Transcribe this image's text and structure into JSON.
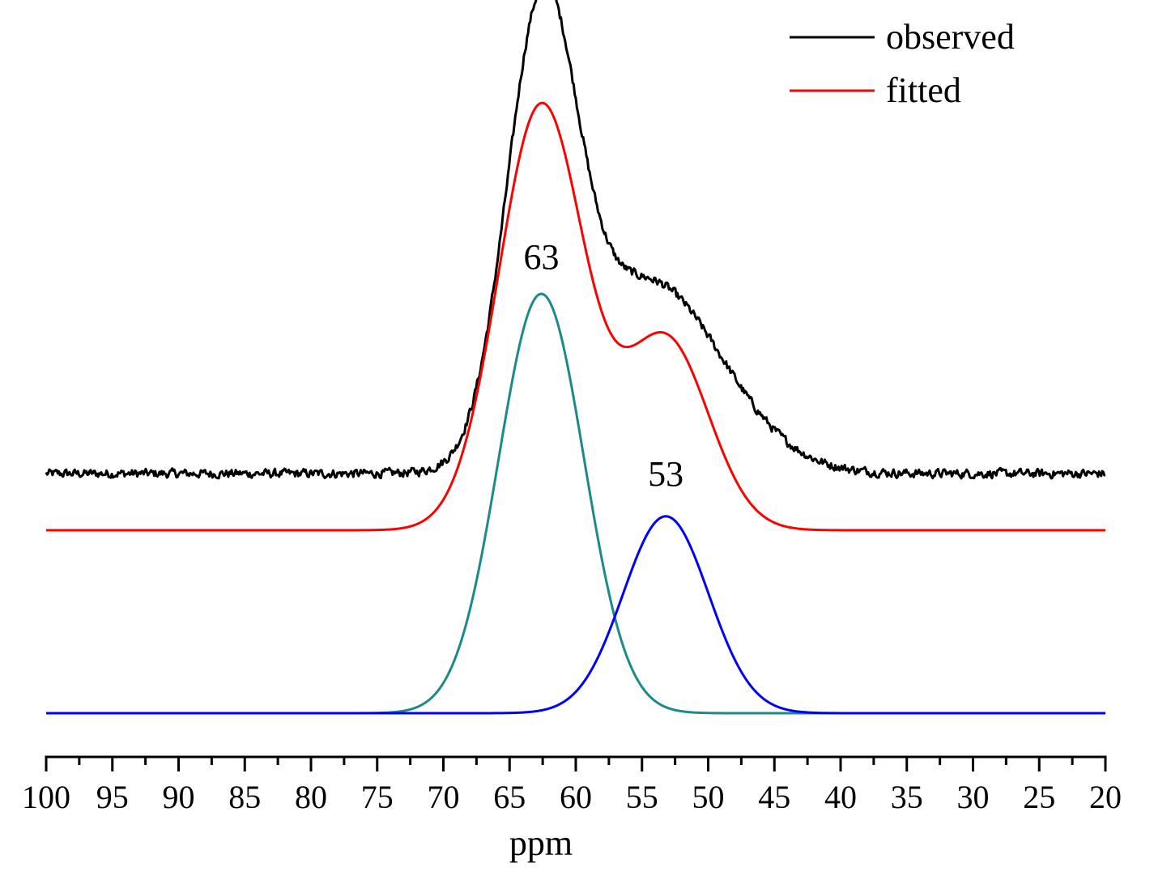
{
  "chart_data": {
    "type": "line",
    "title": "",
    "xlabel": "ppm",
    "ylabel": "",
    "xlim": [
      100,
      20
    ],
    "x_reversed": true,
    "grid": false,
    "x_ticks": [
      100,
      95,
      90,
      85,
      80,
      75,
      70,
      65,
      60,
      55,
      50,
      45,
      40,
      35,
      30,
      25,
      20
    ],
    "x_tick_labels": [
      "100",
      "95",
      "90",
      "85",
      "80",
      "75",
      "70",
      "65",
      "60",
      "55",
      "50",
      "45",
      "40",
      "35",
      "30",
      "25",
      "20"
    ],
    "x_minor_step": 2.5,
    "legend": {
      "placement": "top-right",
      "entries": [
        {
          "label": "observed",
          "color": "#000000"
        },
        {
          "label": "fitted",
          "color": "#ff0000"
        }
      ]
    },
    "series": [
      {
        "name": "observed",
        "color": "#000000",
        "baseline": 0.0,
        "noise": 0.01,
        "peaks": [
          {
            "center": 62.6,
            "height": 0.66,
            "fwhm": 6.2
          },
          {
            "center": 54.5,
            "height": 0.3,
            "fwhm": 13.0
          }
        ]
      },
      {
        "name": "fitted",
        "color": "#ff0000",
        "baseline": 0.0,
        "peaks": [
          {
            "center": 62.6,
            "height": 0.69,
            "fwhm": 7.6
          },
          {
            "center": 53.2,
            "height": 0.31,
            "fwhm": 7.6
          }
        ]
      },
      {
        "name": "component 63 ppm",
        "color": "#1a8a8a",
        "baseline": 0.0,
        "peaks": [
          {
            "center": 62.6,
            "height": 0.7,
            "fwhm": 7.6
          }
        ]
      },
      {
        "name": "component 53 ppm",
        "color": "#0000ff",
        "baseline": 0.0,
        "peaks": [
          {
            "center": 53.2,
            "height": 0.32,
            "fwhm": 7.6
          }
        ]
      }
    ],
    "annotations": [
      {
        "text": "63",
        "x": 62.6,
        "series": "component 63 ppm"
      },
      {
        "text": "53",
        "x": 53.2,
        "series": "component 53 ppm"
      }
    ]
  }
}
